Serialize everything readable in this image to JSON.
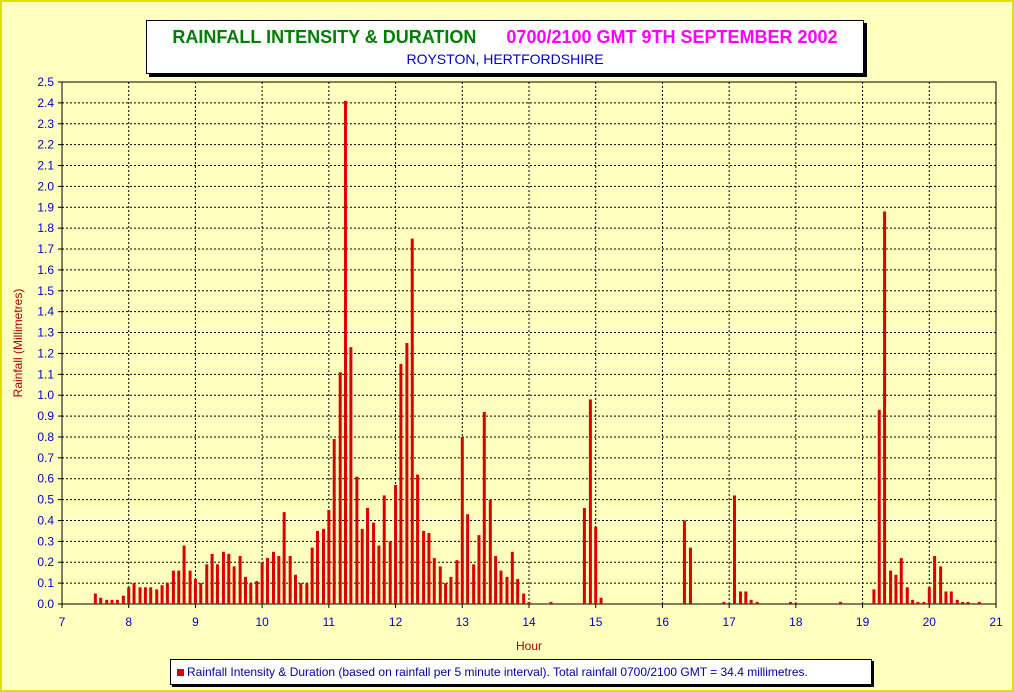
{
  "header": {
    "title_left": "RAINFALL INTENSITY & DURATION",
    "title_right": "0700/2100 GMT 9TH SEPTEMBER 2002",
    "subtitle": "ROYSTON, HERTFORDSHIRE"
  },
  "legend": {
    "label": "Rainfall Intensity & Duration (based on rainfall per 5 minute interval). Total rainfall 0700/2100 GMT = 34.4 millimetres."
  },
  "colors": {
    "bar": "#dd0000",
    "title_left": "#008000",
    "title_right": "#ff00ff",
    "axis_text": "#0000cc",
    "axis_title": "#aa0000",
    "background": "#ffffc0"
  },
  "chart_data": {
    "type": "bar",
    "xlabel": "Hour",
    "ylabel": "Rainfall (Millimetres)",
    "xlim": [
      7,
      21
    ],
    "ylim": [
      0,
      2.5
    ],
    "x_ticks": [
      7,
      8,
      9,
      10,
      11,
      12,
      13,
      14,
      15,
      16,
      17,
      18,
      19,
      20,
      21
    ],
    "y_ticks": [
      "0.0",
      "0.1",
      "0.2",
      "0.3",
      "0.4",
      "0.5",
      "0.6",
      "0.7",
      "0.8",
      "0.9",
      "1.0",
      "1.1",
      "1.2",
      "1.3",
      "1.4",
      "1.5",
      "1.6",
      "1.7",
      "1.8",
      "1.9",
      "2.0",
      "2.1",
      "2.2",
      "2.3",
      "2.4",
      "2.5"
    ],
    "grid": true,
    "legend_position": "bottom",
    "series": [
      {
        "name": "Rainfall Intensity & Duration (based on rainfall per 5 minute interval). Total rainfall 0700/2100 GMT = 34.4 millimetres.",
        "points": [
          [
            7.5,
            0.05
          ],
          [
            7.58,
            0.03
          ],
          [
            7.67,
            0.02
          ],
          [
            7.75,
            0.02
          ],
          [
            7.83,
            0.02
          ],
          [
            7.92,
            0.04
          ],
          [
            8.0,
            0.08
          ],
          [
            8.08,
            0.1
          ],
          [
            8.17,
            0.08
          ],
          [
            8.25,
            0.08
          ],
          [
            8.33,
            0.08
          ],
          [
            8.42,
            0.07
          ],
          [
            8.5,
            0.09
          ],
          [
            8.58,
            0.1
          ],
          [
            8.67,
            0.16
          ],
          [
            8.75,
            0.16
          ],
          [
            8.83,
            0.28
          ],
          [
            8.92,
            0.16
          ],
          [
            9.0,
            0.12
          ],
          [
            9.08,
            0.1
          ],
          [
            9.17,
            0.19
          ],
          [
            9.25,
            0.24
          ],
          [
            9.33,
            0.19
          ],
          [
            9.42,
            0.25
          ],
          [
            9.5,
            0.24
          ],
          [
            9.58,
            0.18
          ],
          [
            9.67,
            0.23
          ],
          [
            9.75,
            0.13
          ],
          [
            9.83,
            0.1
          ],
          [
            9.92,
            0.11
          ],
          [
            10.0,
            0.2
          ],
          [
            10.08,
            0.22
          ],
          [
            10.17,
            0.25
          ],
          [
            10.25,
            0.23
          ],
          [
            10.33,
            0.44
          ],
          [
            10.42,
            0.23
          ],
          [
            10.5,
            0.14
          ],
          [
            10.58,
            0.1
          ],
          [
            10.67,
            0.1
          ],
          [
            10.75,
            0.27
          ],
          [
            10.83,
            0.35
          ],
          [
            10.92,
            0.36
          ],
          [
            11.0,
            0.45
          ],
          [
            11.08,
            0.79
          ],
          [
            11.17,
            1.11
          ],
          [
            11.25,
            2.41
          ],
          [
            11.33,
            1.23
          ],
          [
            11.42,
            0.61
          ],
          [
            11.5,
            0.36
          ],
          [
            11.58,
            0.46
          ],
          [
            11.67,
            0.39
          ],
          [
            11.75,
            0.28
          ],
          [
            11.83,
            0.52
          ],
          [
            11.92,
            0.3
          ],
          [
            12.0,
            0.57
          ],
          [
            12.08,
            1.15
          ],
          [
            12.17,
            1.25
          ],
          [
            12.25,
            1.75
          ],
          [
            12.33,
            0.62
          ],
          [
            12.42,
            0.35
          ],
          [
            12.5,
            0.34
          ],
          [
            12.58,
            0.22
          ],
          [
            12.67,
            0.18
          ],
          [
            12.75,
            0.1
          ],
          [
            12.83,
            0.13
          ],
          [
            12.92,
            0.21
          ],
          [
            13.0,
            0.8
          ],
          [
            13.08,
            0.43
          ],
          [
            13.17,
            0.19
          ],
          [
            13.25,
            0.33
          ],
          [
            13.33,
            0.92
          ],
          [
            13.42,
            0.5
          ],
          [
            13.5,
            0.23
          ],
          [
            13.58,
            0.16
          ],
          [
            13.67,
            0.13
          ],
          [
            13.75,
            0.25
          ],
          [
            13.83,
            0.12
          ],
          [
            13.92,
            0.05
          ],
          [
            14.0,
            0.01
          ],
          [
            14.33,
            0.01
          ],
          [
            14.83,
            0.46
          ],
          [
            14.92,
            0.98
          ],
          [
            15.0,
            0.37
          ],
          [
            15.08,
            0.03
          ],
          [
            16.33,
            0.4
          ],
          [
            16.42,
            0.27
          ],
          [
            16.92,
            0.01
          ],
          [
            17.08,
            0.52
          ],
          [
            17.17,
            0.06
          ],
          [
            17.25,
            0.06
          ],
          [
            17.33,
            0.02
          ],
          [
            17.42,
            0.01
          ],
          [
            17.92,
            0.01
          ],
          [
            18.67,
            0.01
          ],
          [
            19.17,
            0.07
          ],
          [
            19.25,
            0.93
          ],
          [
            19.33,
            1.88
          ],
          [
            19.42,
            0.16
          ],
          [
            19.5,
            0.14
          ],
          [
            19.58,
            0.22
          ],
          [
            19.67,
            0.08
          ],
          [
            19.75,
            0.02
          ],
          [
            19.83,
            0.01
          ],
          [
            19.92,
            0.01
          ],
          [
            20.0,
            0.08
          ],
          [
            20.08,
            0.23
          ],
          [
            20.17,
            0.18
          ],
          [
            20.25,
            0.06
          ],
          [
            20.33,
            0.06
          ],
          [
            20.42,
            0.02
          ],
          [
            20.5,
            0.01
          ],
          [
            20.58,
            0.01
          ],
          [
            20.75,
            0.01
          ]
        ]
      }
    ]
  }
}
